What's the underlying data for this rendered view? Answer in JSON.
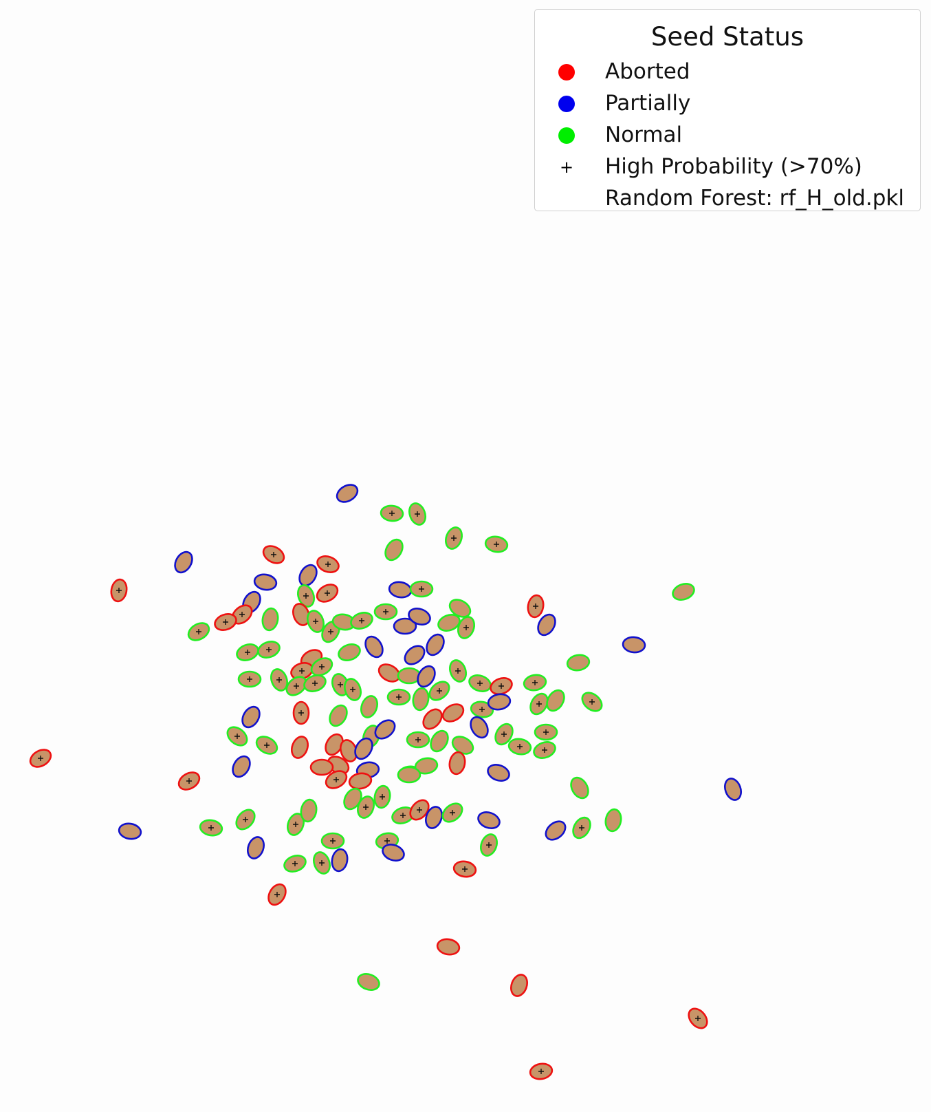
{
  "legend": {
    "title": "Seed Status",
    "items": [
      {
        "label": "Aborted",
        "marker": "dot",
        "color": "#ff0000"
      },
      {
        "label": "Partially",
        "marker": "dot",
        "color": "#0000ee"
      },
      {
        "label": "Normal",
        "marker": "dot",
        "color": "#00ee00"
      },
      {
        "label": "High Probability (>70%)",
        "marker": "plus",
        "color": "#000000"
      },
      {
        "label": "Random Forest: rf_H_old.pkl",
        "marker": "none",
        "color": ""
      }
    ]
  },
  "colors": {
    "background": "#fdfdfd",
    "seed_fill": "#c89468",
    "aborted": "#ee1111",
    "partially": "#1111cc",
    "normal": "#22ee22"
  }
}
